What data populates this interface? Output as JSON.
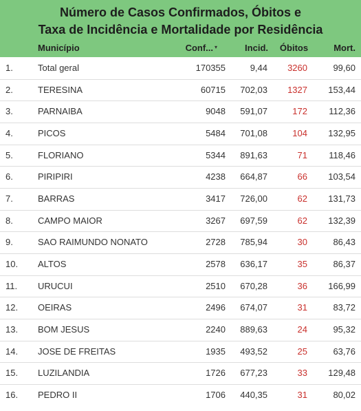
{
  "header": {
    "title_lines": [
      "Número de Casos Confirmados, Óbitos e",
      "Taxa de Incidência e Mortalidade por Residência"
    ]
  },
  "table": {
    "columns": [
      "Município",
      "Conf...",
      "Incid.",
      "Óbitos",
      "Mort."
    ],
    "rows": [
      [
        "1.",
        "Total geral",
        "170355",
        "9,44",
        "3260",
        "99,60"
      ],
      [
        "2.",
        "TERESINA",
        "60715",
        "702,03",
        "1327",
        "153,44"
      ],
      [
        "3.",
        "PARNAIBA",
        "9048",
        "591,07",
        "172",
        "112,36"
      ],
      [
        "4.",
        "PICOS",
        "5484",
        "701,08",
        "104",
        "132,95"
      ],
      [
        "5.",
        "FLORIANO",
        "5344",
        "891,63",
        "71",
        "118,46"
      ],
      [
        "6.",
        "PIRIPIRI",
        "4238",
        "664,87",
        "66",
        "103,54"
      ],
      [
        "7.",
        "BARRAS",
        "3417",
        "726,00",
        "62",
        "131,73"
      ],
      [
        "8.",
        "CAMPO MAIOR",
        "3267",
        "697,59",
        "62",
        "132,39"
      ],
      [
        "9.",
        "SAO RAIMUNDO NONATO",
        "2728",
        "785,94",
        "30",
        "86,43"
      ],
      [
        "10.",
        "ALTOS",
        "2578",
        "636,17",
        "35",
        "86,37"
      ],
      [
        "11.",
        "URUCUI",
        "2510",
        "670,28",
        "36",
        "166,99"
      ],
      [
        "12.",
        "OEIRAS",
        "2496",
        "674,07",
        "31",
        "83,72"
      ],
      [
        "13.",
        "BOM JESUS",
        "2240",
        "889,63",
        "24",
        "95,32"
      ],
      [
        "14.",
        "JOSE DE FREITAS",
        "1935",
        "493,52",
        "25",
        "63,76"
      ],
      [
        "15.",
        "LUZILANDIA",
        "1726",
        "677,23",
        "33",
        "129,48"
      ],
      [
        "16.",
        "PEDRO II",
        "1706",
        "440,35",
        "31",
        "80,02"
      ]
    ]
  }
}
